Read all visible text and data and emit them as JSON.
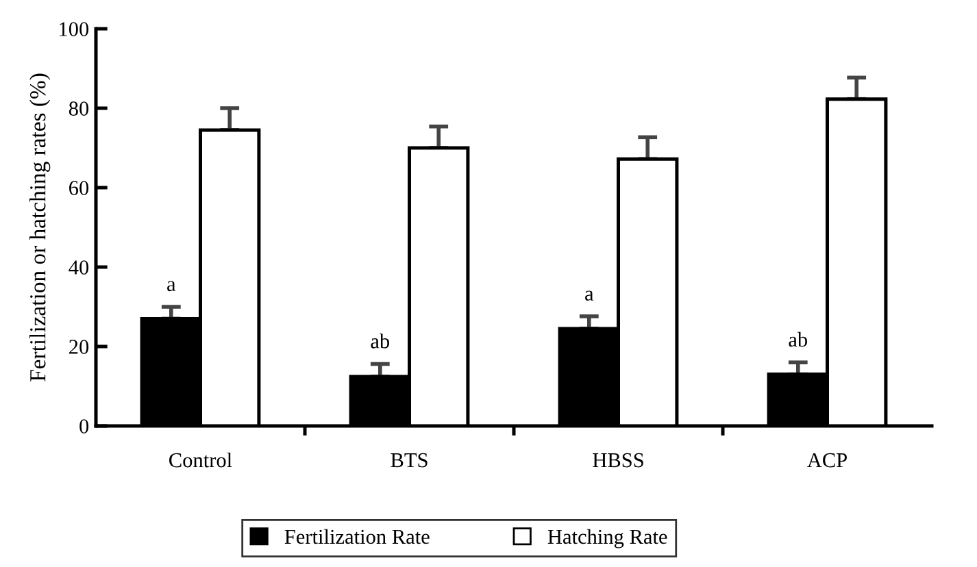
{
  "chart_data": {
    "type": "bar",
    "ylabel": "Fertilization or hatching rates (%)",
    "categories": [
      "Control",
      "BTS",
      "HBSS",
      "ACP"
    ],
    "series": [
      {
        "name": "Fertilization Rate",
        "color": "#000000",
        "values": [
          27,
          12.4,
          24.5,
          13
        ],
        "errors": [
          [
            27,
            30
          ],
          [
            12.4,
            15.6
          ],
          [
            24.5,
            27.6
          ],
          [
            13,
            16
          ]
        ]
      },
      {
        "name": "Hatching Rate",
        "color": "#ffffff",
        "values": [
          74.5,
          70,
          67.2,
          82.3
        ],
        "errors": [
          [
            74.5,
            80
          ],
          [
            70,
            75.4
          ],
          [
            67.2,
            72.7
          ],
          [
            82.3,
            87.7
          ]
        ]
      }
    ],
    "ylim": [
      0,
      100
    ],
    "yticks": [
      0,
      20,
      40,
      60,
      80,
      100
    ],
    "grid": false,
    "legend": "bottom",
    "annotations": [
      {
        "text": "a",
        "x": "Control",
        "y": 30
      },
      {
        "text": "ab",
        "x": "BTS",
        "y": 15.6
      },
      {
        "text": "a",
        "x": "HBSS",
        "y": 27.6
      },
      {
        "text": "ab",
        "x": "ACP",
        "y": 16
      }
    ]
  }
}
